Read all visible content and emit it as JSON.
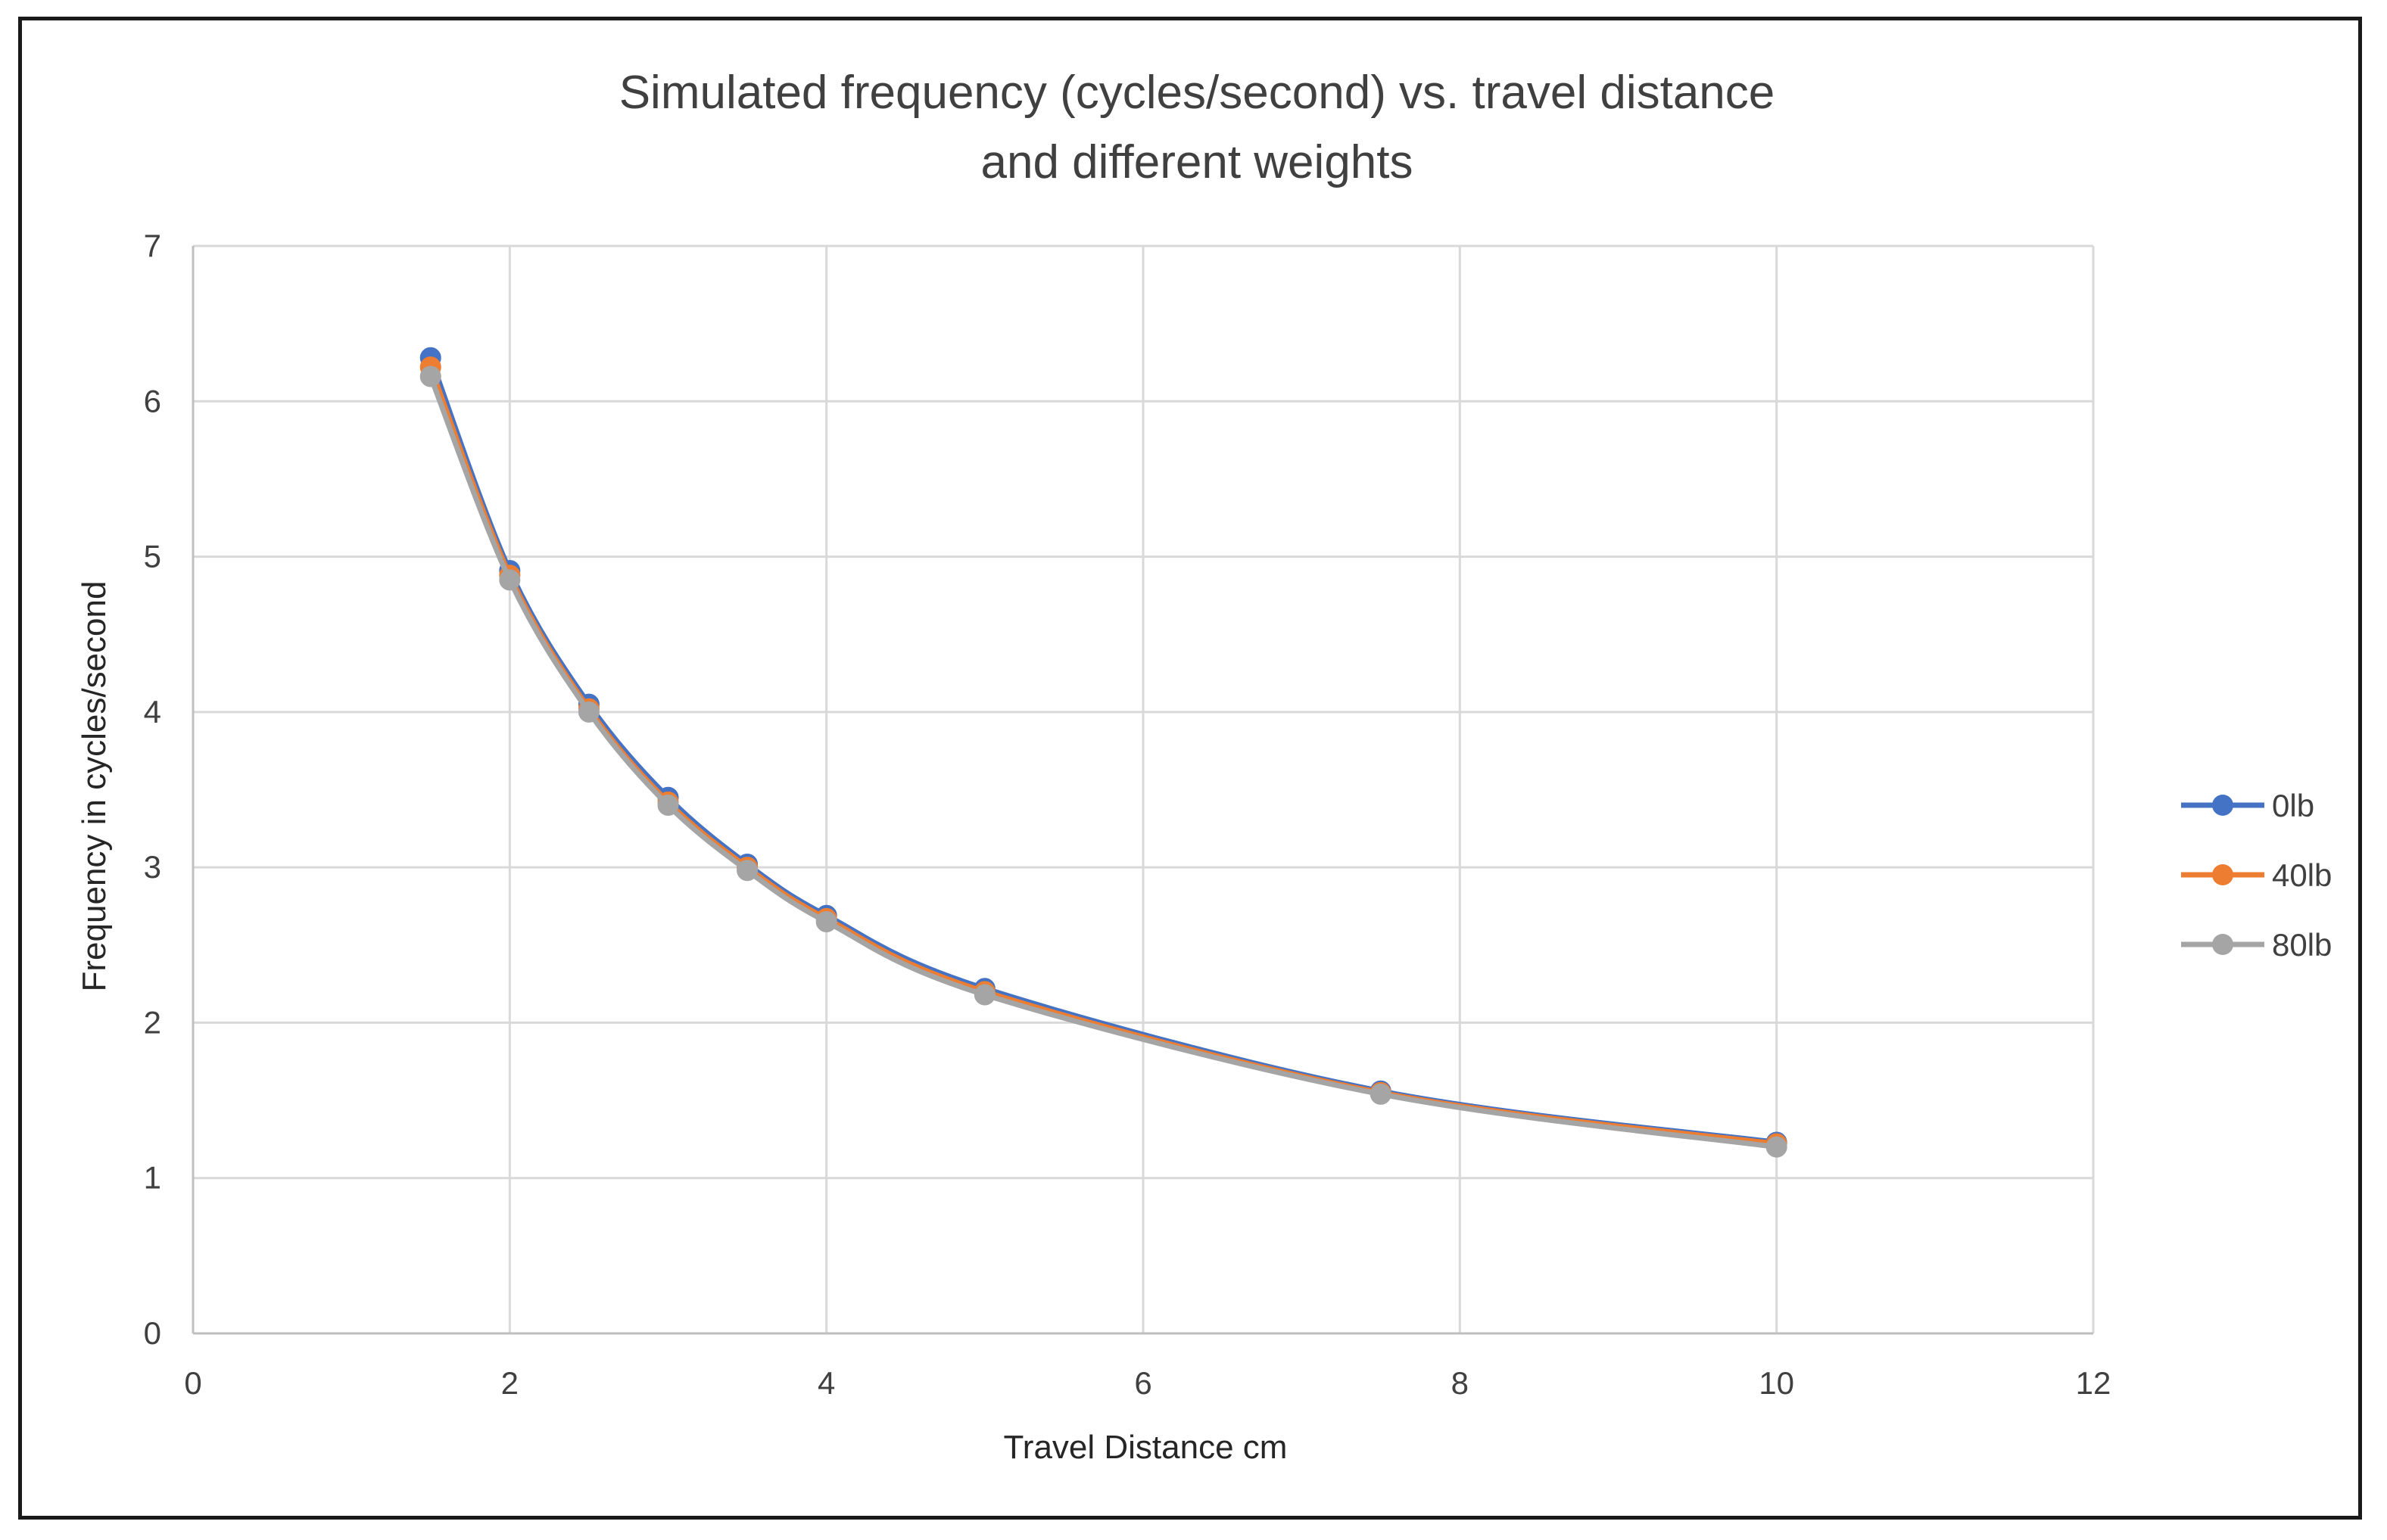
{
  "chart_data": {
    "type": "scatter",
    "title_lines": [
      "Simulated frequency (cycles/second) vs. travel distance",
      "and different weights"
    ],
    "xlabel": "Travel Distance cm",
    "ylabel": "Frequency in cycles/second",
    "xlim": [
      0,
      12
    ],
    "ylim": [
      0,
      7
    ],
    "x_ticks": [
      0,
      2,
      4,
      6,
      8,
      10,
      12
    ],
    "y_ticks": [
      0,
      1,
      2,
      3,
      4,
      5,
      6,
      7
    ],
    "grid": true,
    "legend_position": "right",
    "smooth_lines": true,
    "x": [
      1.5,
      2,
      2.5,
      3,
      3.5,
      4,
      5,
      7.5,
      10
    ],
    "series": [
      {
        "name": "0lb",
        "color": "#4472C4",
        "values": [
          6.28,
          4.91,
          4.05,
          3.45,
          3.02,
          2.69,
          2.22,
          1.56,
          1.23
        ]
      },
      {
        "name": "40lb",
        "color": "#ED7D31",
        "values": [
          6.22,
          4.88,
          4.02,
          3.42,
          3.0,
          2.67,
          2.2,
          1.55,
          1.22
        ]
      },
      {
        "name": "80lb",
        "color": "#A5A5A5",
        "values": [
          6.16,
          4.85,
          4.0,
          3.4,
          2.98,
          2.65,
          2.18,
          1.54,
          1.2
        ]
      }
    ]
  }
}
